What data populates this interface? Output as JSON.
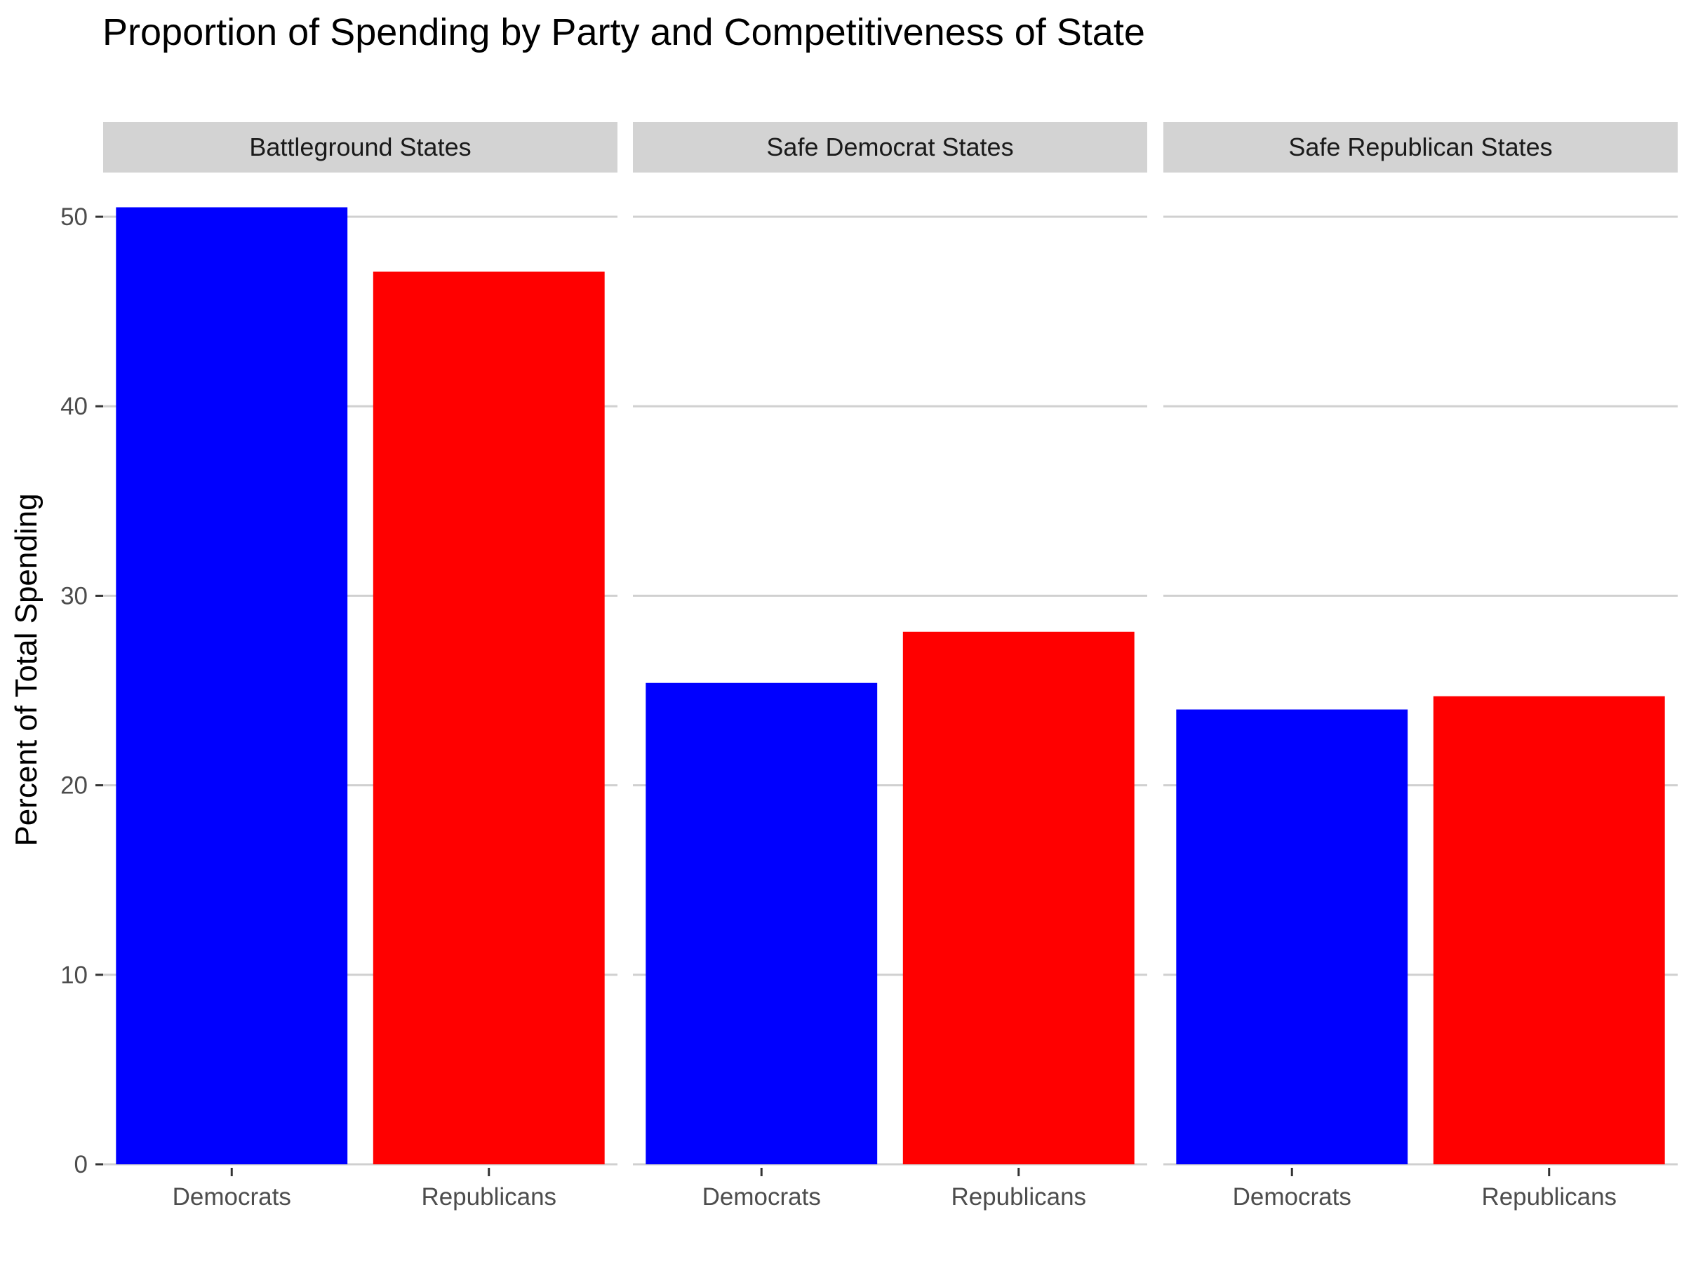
{
  "chart_data": {
    "type": "bar",
    "title": "Proportion of Spending by Party and Competitiveness of State",
    "xlabel": "",
    "ylabel": "Percent of Total Spending",
    "ylim": [
      0,
      52
    ],
    "yticks": [
      0,
      10,
      20,
      30,
      40,
      50
    ],
    "grid": "horizontal",
    "legend": "none",
    "categories": [
      "Democrats",
      "Republicans"
    ],
    "colors": {
      "Democrats": "#0000ff",
      "Republicans": "#ff0000"
    },
    "panels": [
      {
        "name": "Battleground States",
        "values": [
          50.5,
          47.1
        ]
      },
      {
        "name": "Safe Democrat States",
        "values": [
          25.4,
          28.1
        ]
      },
      {
        "name": "Safe Republican States",
        "values": [
          24.0,
          24.7
        ]
      }
    ]
  }
}
